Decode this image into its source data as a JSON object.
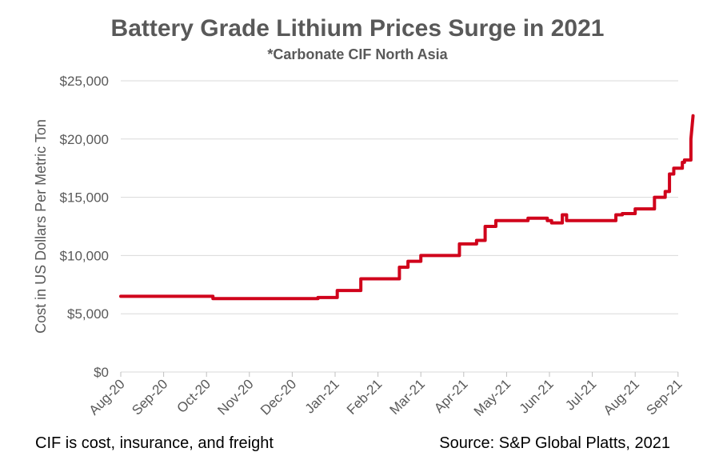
{
  "chart_data": {
    "type": "line",
    "title": "Battery Grade Lithium Prices Surge in 2021",
    "subtitle": "*Carbonate CIF North Asia",
    "xlabel": "",
    "ylabel": "Cost in US Dollars Per Metric Ton",
    "ylim": [
      0,
      25000
    ],
    "yticks": [
      "$0",
      "$5,000",
      "$10,000",
      "$15,000",
      "$20,000",
      "$25,000"
    ],
    "xticks": [
      "Aug-20",
      "Sep-20",
      "Oct-20",
      "Nov-20",
      "Dec-20",
      "Jan-21",
      "Feb-21",
      "Mar-21",
      "Apr-21",
      "May-21",
      "Jun-21",
      "Jul-21",
      "Aug-21",
      "Sep-21"
    ],
    "grid": true,
    "line_color": "#d0021b",
    "series": [
      {
        "x": [
          0,
          2.1,
          2.15,
          4.0,
          4.6,
          4.95,
          5.05,
          5.5,
          5.6,
          6.1,
          6.5,
          6.6,
          6.7,
          7.0,
          7.3,
          7.6,
          7.9,
          8.0,
          8.15,
          8.3,
          8.5,
          8.75,
          9.0,
          9.5,
          9.9,
          9.95,
          10.05,
          10.2,
          10.3,
          10.4,
          10.8,
          11.0,
          11.35,
          11.55,
          11.7,
          12.0,
          12.3,
          12.45,
          12.55,
          12.7,
          12.8,
          12.9,
          13.0,
          13.1,
          13.15,
          13.2,
          13.3
        ],
        "y": [
          6500,
          6500,
          6300,
          6300,
          6400,
          6400,
          7000,
          7000,
          8000,
          8000,
          9000,
          9000,
          9500,
          10000,
          10000,
          10000,
          11000,
          11000,
          11000,
          11300,
          12500,
          13000,
          13000,
          13200,
          13200,
          13000,
          12800,
          12800,
          13500,
          13000,
          13000,
          13000,
          13000,
          13500,
          13600,
          14000,
          14000,
          15000,
          15000,
          15500,
          17000,
          17500,
          17500,
          18000,
          18200,
          18200,
          20000
        ]
      }
    ],
    "line_end": {
      "x": 13.35,
      "y": 22000
    },
    "footnote_left": "CIF is cost, insurance, and freight",
    "footnote_right": "Source: S&P Global Platts, 2021"
  }
}
